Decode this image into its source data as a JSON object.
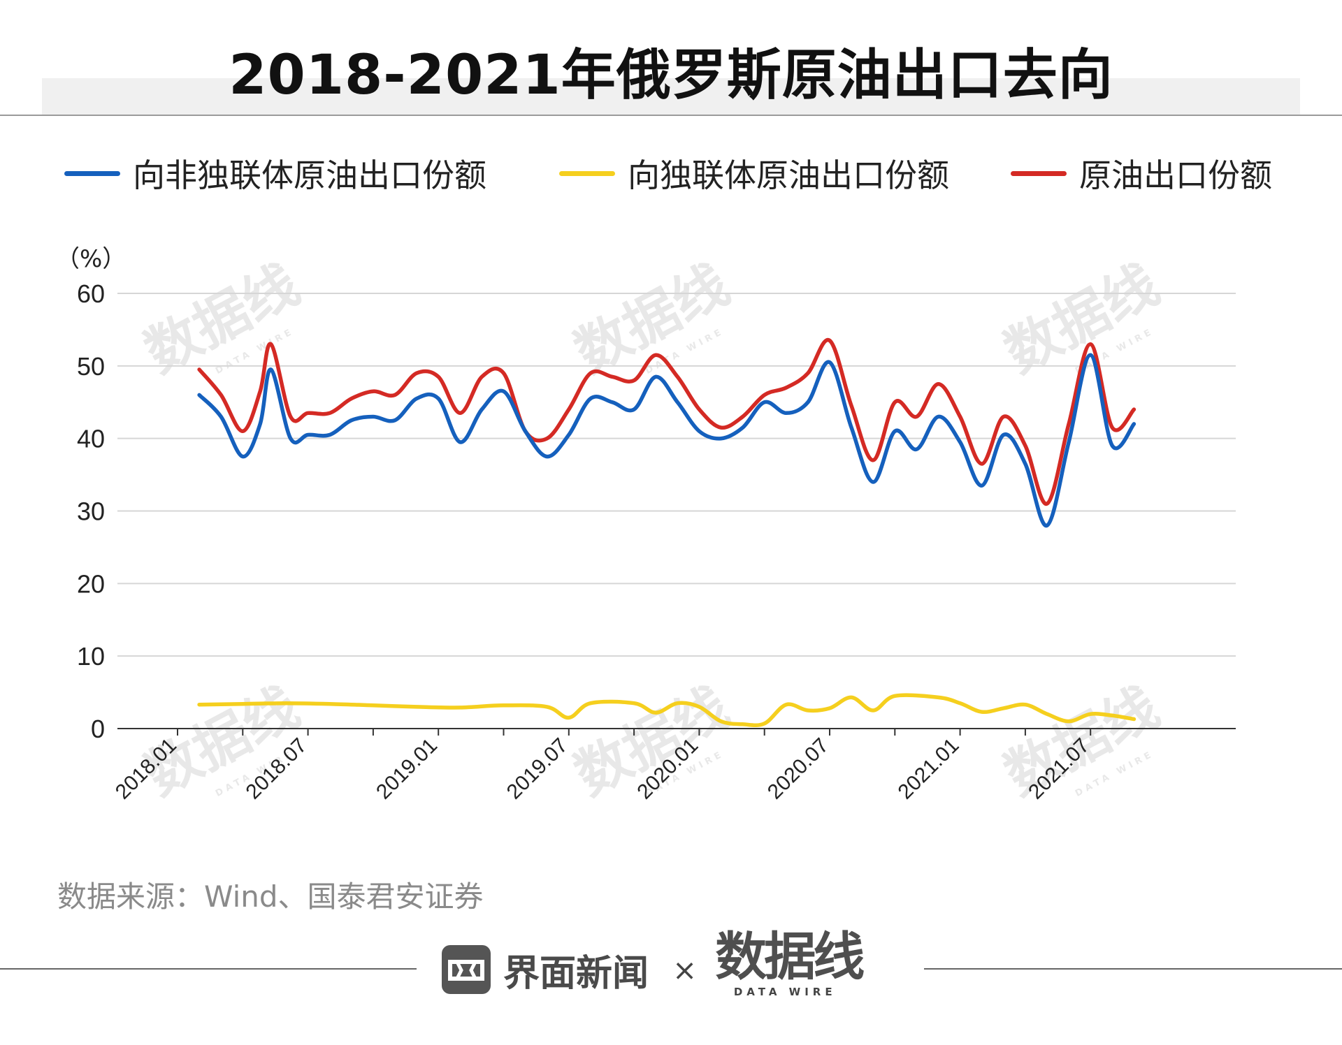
{
  "chart_data": {
    "type": "line",
    "title": "2018-2021年俄罗斯原油出口去向",
    "unit_label": "（%）",
    "ylim": [
      0,
      60
    ],
    "yticks": [
      "0",
      "10",
      "20",
      "30",
      "40",
      "50",
      "60"
    ],
    "xlabels": [
      "2018.01",
      "2018.07",
      "2019.01",
      "2019.07",
      "2020.01",
      "2020.07",
      "2021.01",
      "2021.07"
    ],
    "x_month_range": [
      0,
      44
    ],
    "series": [
      {
        "name": "向非独联体原油出口份额",
        "color": "#1560bd",
        "x": [
          1,
          2,
          3,
          3.8,
          4.3,
          5.2,
          6,
          7,
          8,
          9,
          10,
          11,
          12,
          13,
          14,
          15,
          16,
          17,
          18,
          19,
          20,
          21,
          22,
          23,
          24,
          25,
          26,
          27,
          28,
          29,
          30,
          31,
          32,
          33,
          34,
          35,
          36,
          37,
          38,
          39,
          40,
          41,
          42,
          43,
          44
        ],
        "values": [
          46,
          43,
          37.5,
          42,
          49.5,
          40,
          40.5,
          40.5,
          42.5,
          43,
          42.5,
          45.5,
          45.5,
          39.5,
          44,
          46.5,
          41,
          37.5,
          40.5,
          45.5,
          45,
          44,
          48.5,
          45,
          41,
          40,
          41.5,
          45,
          43.5,
          45,
          50.5,
          41.5,
          34,
          41,
          38.5,
          43,
          39.5,
          33.5,
          40.5,
          36.5,
          28,
          39.5,
          51.5,
          39,
          42
        ]
      },
      {
        "name": "向独联体原油出口份额",
        "color": "#f5cf1e",
        "x": [
          1,
          3,
          5,
          7,
          9,
          11,
          13,
          15,
          17,
          18,
          19,
          21,
          22,
          23,
          24,
          25,
          26,
          27,
          28,
          29,
          30,
          31,
          32,
          33,
          35,
          36,
          37,
          38,
          39,
          40,
          41,
          42,
          43,
          44
        ],
        "values": [
          3.3,
          3.4,
          3.5,
          3.4,
          3.2,
          3.0,
          2.9,
          3.2,
          3.0,
          1.5,
          3.5,
          3.5,
          2.2,
          3.5,
          3.0,
          1.0,
          0.6,
          0.7,
          3.3,
          2.5,
          2.8,
          4.3,
          2.5,
          4.5,
          4.3,
          3.5,
          2.3,
          2.8,
          3.3,
          2.0,
          1.0,
          2.0,
          1.8,
          1.3
        ]
      },
      {
        "name": "原油出口份额",
        "color": "#d42a24",
        "x": [
          1,
          2,
          3,
          3.8,
          4.3,
          5.2,
          6,
          7,
          8,
          9,
          10,
          11,
          12,
          13,
          14,
          15,
          16,
          17,
          18,
          19,
          20,
          21,
          22,
          23,
          24,
          25,
          26,
          27,
          28,
          29,
          30,
          31,
          32,
          33,
          34,
          35,
          36,
          37,
          38,
          39,
          40,
          41,
          42,
          43,
          44
        ],
        "values": [
          49.5,
          46,
          41,
          46.5,
          53,
          43,
          43.5,
          43.5,
          45.5,
          46.5,
          46,
          49,
          48.5,
          43.5,
          48.5,
          49,
          41,
          40,
          44,
          49,
          48.5,
          48,
          51.5,
          48.5,
          44,
          41.5,
          43,
          46,
          47,
          49,
          53.5,
          44.5,
          37,
          45,
          43,
          47.5,
          43,
          36.5,
          43,
          39,
          31,
          42,
          53,
          41.5,
          44
        ]
      }
    ]
  },
  "legend": [
    {
      "label": "向非独联体原油出口份额",
      "color": "#1560bd"
    },
    {
      "label": "向独联体原油出口份额",
      "color": "#f5cf1e"
    },
    {
      "label": "原油出口份额",
      "color": "#d42a24"
    }
  ],
  "source_text": "数据来源：Wind、国泰君安证券",
  "footer": {
    "brand": "界面新闻",
    "times": "×",
    "datawire_mark": "数据线",
    "datawire_sub": "DATA WIRE",
    "watermark_mark": "数据线",
    "watermark_sub": "DATA WIRE"
  }
}
